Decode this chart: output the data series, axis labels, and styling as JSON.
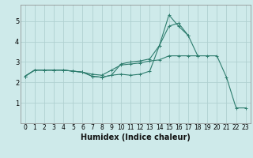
{
  "background_color": "#ceeaea",
  "grid_color": "#b0d0d0",
  "line_color": "#2e7d6e",
  "xlabel": "Humidex (Indice chaleur)",
  "xlim": [
    -0.5,
    23.5
  ],
  "ylim": [
    0,
    5.8
  ],
  "yticks": [
    1,
    2,
    3,
    4,
    5
  ],
  "xticks": [
    0,
    1,
    2,
    3,
    4,
    5,
    6,
    7,
    8,
    9,
    10,
    11,
    12,
    13,
    14,
    15,
    16,
    17,
    18,
    19,
    20,
    21,
    22,
    23
  ],
  "series": [
    {
      "x": [
        0,
        1,
        2,
        3,
        4,
        5,
        6,
        7,
        8,
        9,
        10,
        11,
        12,
        13,
        14,
        15,
        16,
        17,
        18,
        19,
        20,
        21,
        22,
        23
      ],
      "y": [
        2.3,
        2.6,
        2.6,
        2.6,
        2.6,
        2.55,
        2.5,
        2.4,
        2.35,
        2.6,
        2.85,
        2.9,
        2.95,
        3.05,
        3.1,
        3.3,
        3.3,
        3.3,
        3.3,
        3.3,
        3.3,
        2.25,
        0.75,
        0.75
      ]
    },
    {
      "x": [
        0,
        1,
        2,
        3,
        4,
        5,
        6,
        7,
        8,
        9,
        10,
        11,
        12,
        13,
        14,
        15,
        16,
        17,
        18
      ],
      "y": [
        2.3,
        2.6,
        2.6,
        2.6,
        2.6,
        2.55,
        2.5,
        2.3,
        2.25,
        2.35,
        2.9,
        3.0,
        3.05,
        3.15,
        3.8,
        5.3,
        4.75,
        4.3,
        3.3
      ]
    },
    {
      "x": [
        0,
        1,
        2,
        3,
        4,
        5,
        6,
        7,
        8,
        9,
        10,
        11,
        12,
        13,
        14,
        15,
        16,
        17
      ],
      "y": [
        2.3,
        2.6,
        2.6,
        2.6,
        2.6,
        2.55,
        2.5,
        2.3,
        2.25,
        2.35,
        2.4,
        2.35,
        2.4,
        2.55,
        3.8,
        4.75,
        4.9,
        4.3
      ]
    }
  ],
  "xlabel_fontsize": 7,
  "tick_fontsize": 5.5
}
